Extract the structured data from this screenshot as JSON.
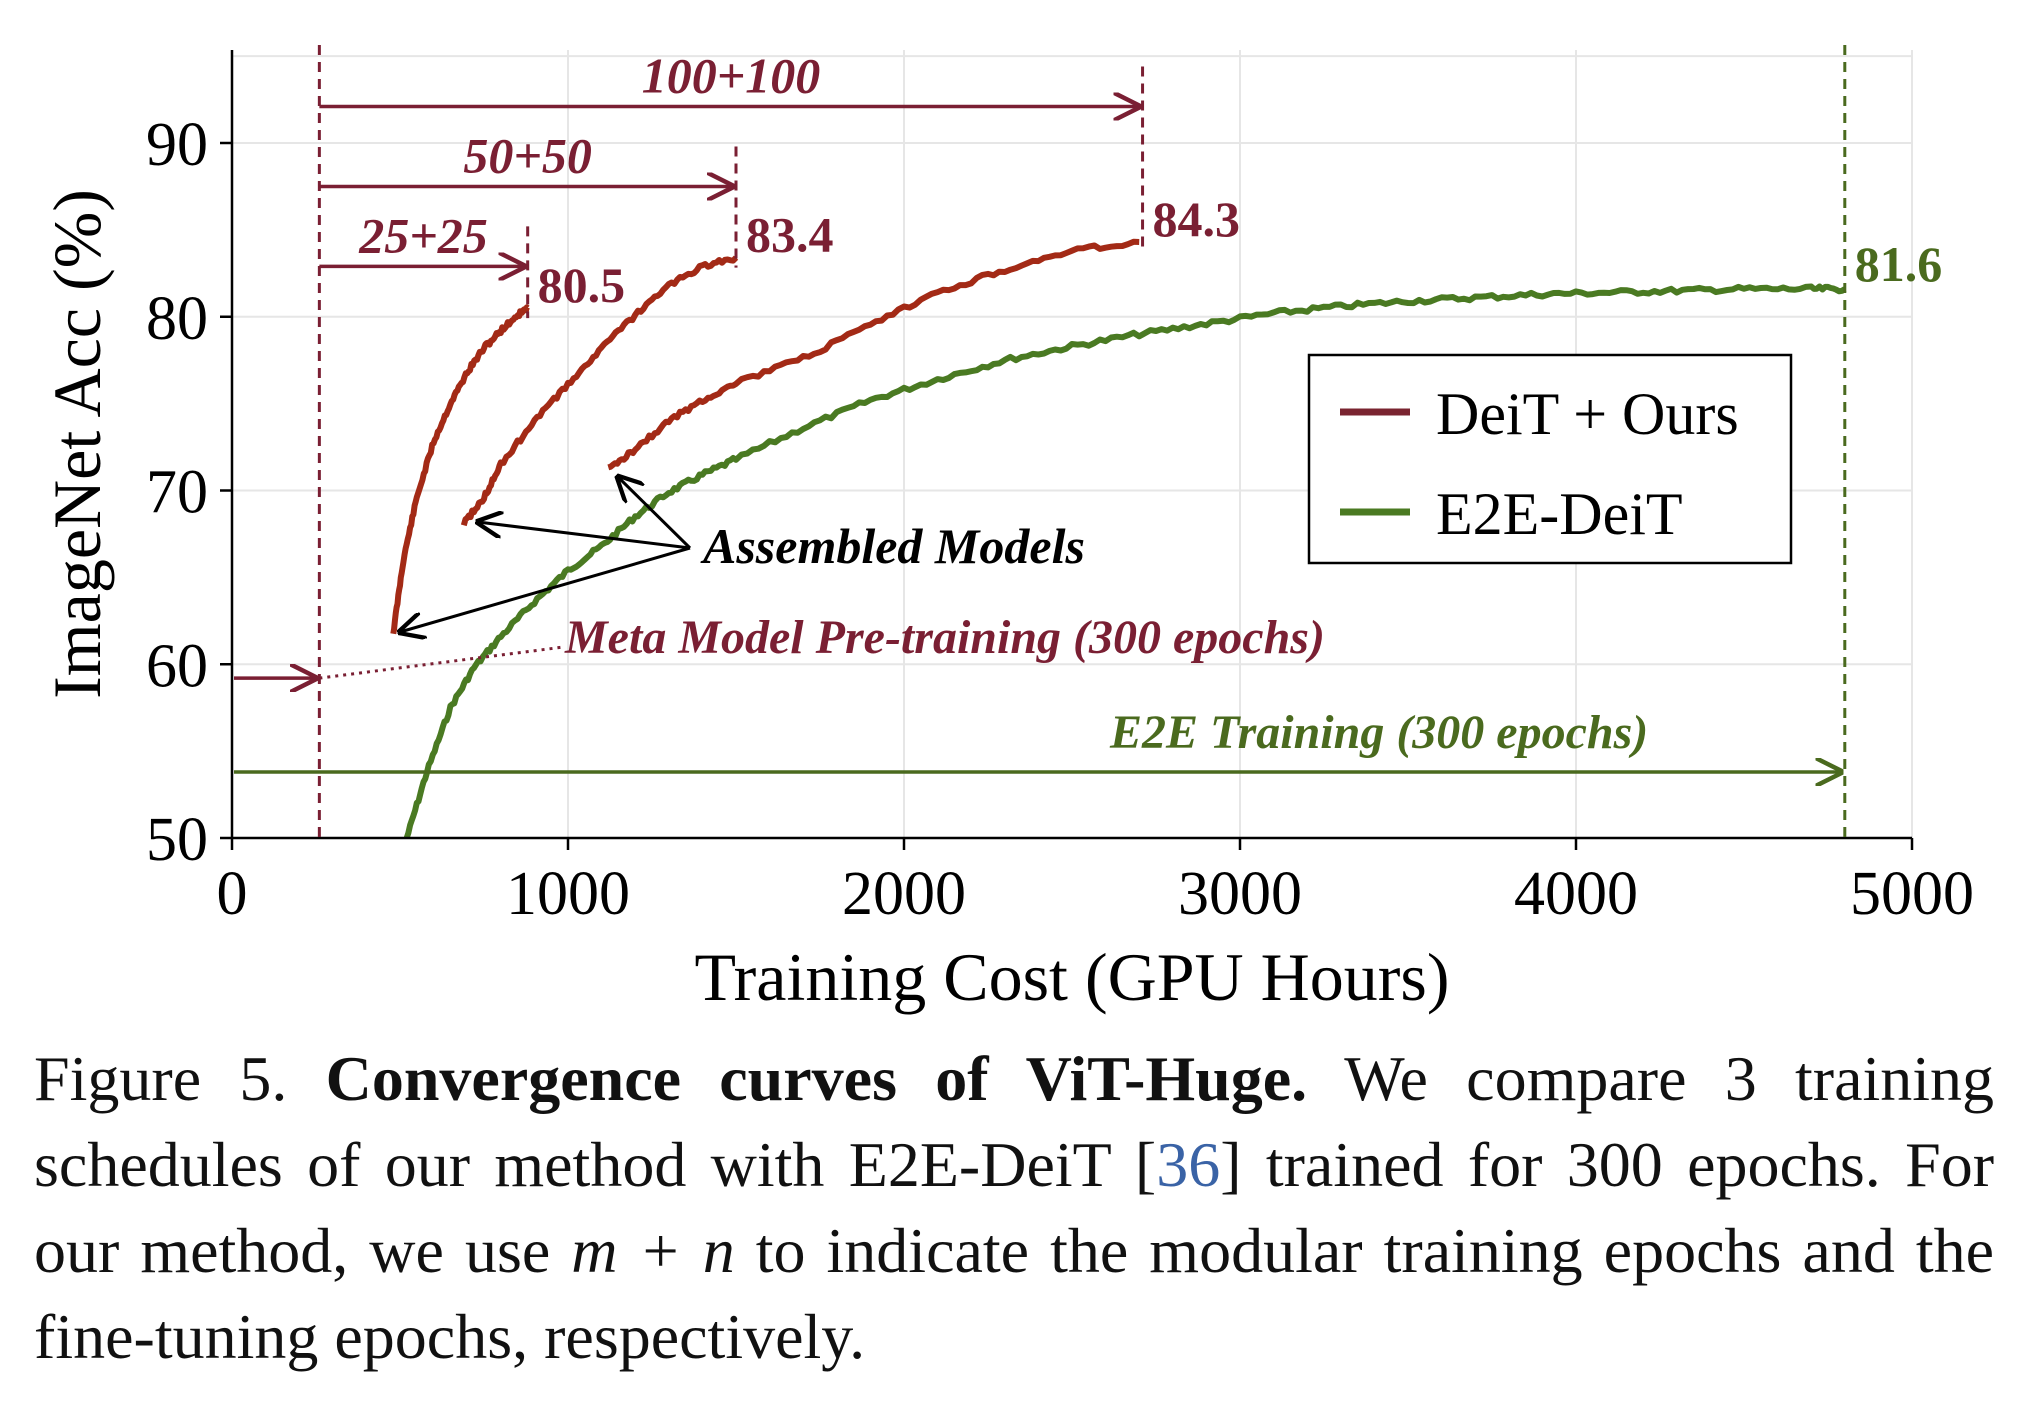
{
  "chart_data": {
    "type": "line",
    "xlabel": "Training Cost (GPU Hours)",
    "ylabel": "ImageNet Acc (%)",
    "xlim": [
      0,
      5000
    ],
    "ylim": [
      50,
      95
    ],
    "xticks": [
      "0",
      "1000",
      "2000",
      "3000",
      "4000",
      "5000"
    ],
    "yticks": [
      "50",
      "60",
      "70",
      "80",
      "90"
    ],
    "grid": true,
    "legend_position": "right",
    "colors": {
      "ours": "#a32a16",
      "e2e": "#4a7a22",
      "annot_red": "#7a1f33",
      "annot_green": "#4a6a1e"
    },
    "series": [
      {
        "name": "DeiT + Ours",
        "legend_color": "#7a2430",
        "curves": [
          {
            "label": "25+25",
            "x": [
              480,
              510,
              550,
              600,
              650,
              700,
              750,
              800,
              850,
              880
            ],
            "y": [
              61.8,
              66.0,
              69.6,
              72.8,
              75.0,
              76.8,
              78.2,
              79.2,
              80.1,
              80.5
            ]
          },
          {
            "label": "50+50",
            "x": [
              690,
              750,
              800,
              900,
              1000,
              1100,
              1200,
              1300,
              1400,
              1500
            ],
            "y": [
              68.1,
              69.6,
              71.5,
              74.0,
              76.1,
              78.2,
              80.1,
              81.8,
              82.9,
              83.4
            ]
          },
          {
            "label": "100+100",
            "x": [
              1120,
              1200,
              1300,
              1400,
              1500,
              1700,
              1900,
              2100,
              2300,
              2500,
              2700
            ],
            "y": [
              71.2,
              72.4,
              74.0,
              75.2,
              76.2,
              77.6,
              79.5,
              81.4,
              82.7,
              83.8,
              84.3
            ]
          }
        ]
      },
      {
        "name": "E2E-DeiT",
        "legend_color": "#4a7a22",
        "x": [
          520,
          580,
          650,
          720,
          800,
          900,
          1000,
          1100,
          1200,
          1300,
          1400,
          1500,
          1700,
          1900,
          2100,
          2300,
          2500,
          2700,
          2900,
          3100,
          3300,
          3500,
          3700,
          3900,
          4100,
          4300,
          4500,
          4700,
          4800
        ],
        "y": [
          50.0,
          53.8,
          57.5,
          59.8,
          61.6,
          63.6,
          65.4,
          66.8,
          68.5,
          69.9,
          70.9,
          71.8,
          73.6,
          75.2,
          76.4,
          77.5,
          78.3,
          79.0,
          79.6,
          80.2,
          80.6,
          80.9,
          81.1,
          81.3,
          81.4,
          81.5,
          81.6,
          81.6,
          81.6
        ]
      }
    ],
    "markers": {
      "meta_start_x": 260,
      "e2e_end_x": 4800,
      "meta_pretrain_y_start": 59.2,
      "meta_pretrain_y_end": 61.0,
      "meta_pretrain_x_end": 990,
      "e2e_arrow_y": 53.8,
      "schedule_arrows": [
        {
          "label": "25+25",
          "x_end": 880,
          "y": 82.9
        },
        {
          "label": "50+50",
          "x_end": 1500,
          "y": 87.5
        },
        {
          "label": "100+100",
          "x_end": 2710,
          "y": 92.1
        }
      ]
    },
    "data_labels": [
      {
        "text": "80.5",
        "x": 880,
        "y": 80.5,
        "color": "#7a1f33"
      },
      {
        "text": "83.4",
        "x": 1500,
        "y": 83.4,
        "color": "#7a1f33"
      },
      {
        "text": "84.3",
        "x": 2710,
        "y": 84.3,
        "color": "#7a1f33"
      },
      {
        "text": "81.6",
        "x": 4800,
        "y": 81.6,
        "color": "#4a6a1e"
      }
    ],
    "annotations": {
      "assembled_models": "Assembled Models",
      "meta_model": "Meta Model Pre-training (300 epochs)",
      "e2e_training": "E2E Training (300 epochs)"
    }
  },
  "caption": {
    "label": "Figure 5.",
    "title": "Convergence curves of ViT-Huge.",
    "text_1": "We compare 3 training schedules of our method with E2E-DeiT [",
    "ref": "36",
    "text_2": "] trained for 300 epochs. For our method, we use",
    "math": "m + n",
    "text_3": "to indicate the modular training epochs and the fine-tuning epochs, respectively."
  }
}
